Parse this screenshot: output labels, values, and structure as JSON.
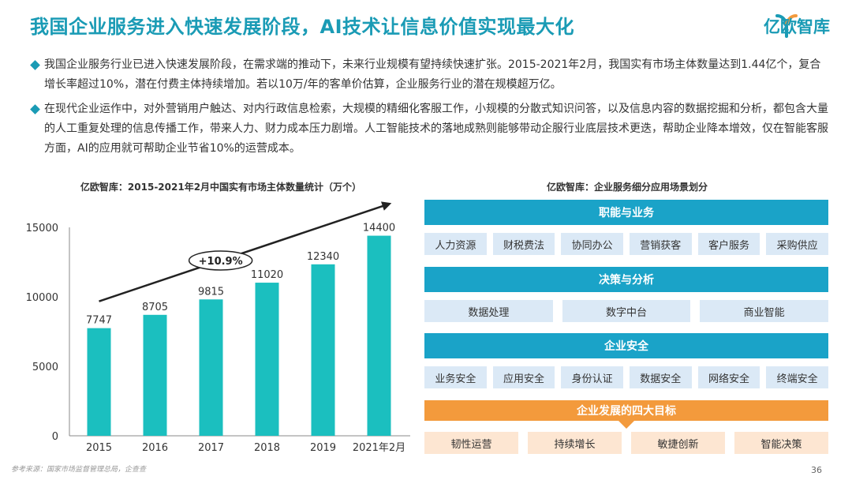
{
  "header": {
    "title": "我国企业服务进入快速发展阶段，AI技术让信息价值实现最大化",
    "logo_text": "亿欧智库"
  },
  "bullets": [
    "我国企业服务行业已进入快速发展阶段，在需求端的推动下，未来行业规模有望持续快速扩张。2015-2021年2月，我国实有市场主体数量达到1.44亿个，复合增长率超过10%，潜在付费主体持续增加。若以10万/年的客单价估算，企业服务行业的潜在规模超万亿。",
    "在现代企业运作中，对外营销用户触达、对内行政信息检索，大规模的精细化客服工作，小规模的分散式知识问答，以及信息内容的数据挖掘和分析，都包含大量的人工重复处理的信息传播工作，带来人力、财力成本压力剧增。人工智能技术的落地成熟则能够带动企服行业底层技术更迭，帮助企业降本增效，仅在智能客服方面，AI的应用就可帮助企业节省10%的运营成本。"
  ],
  "chart_data": {
    "type": "bar",
    "title": "亿欧智库：2015-2021年2月中国实有市场主体数量统计（万个）",
    "categories": [
      "2015",
      "2016",
      "2017",
      "2018",
      "2019",
      "2021年2月"
    ],
    "values": [
      7747,
      8705,
      9815,
      11020,
      12340,
      14400
    ],
    "y_ticks": [
      0,
      5000,
      10000,
      15000
    ],
    "ylim": [
      0,
      15000
    ],
    "annotation": "+10.9%",
    "bar_color": "#1bbfbf",
    "grid": false
  },
  "diagram": {
    "title": "亿欧智库：企业服务细分应用场景划分",
    "sections": [
      {
        "heading": "职能与业务",
        "items": [
          "人力资源",
          "财税费法",
          "协同办公",
          "营销获客",
          "客户服务",
          "采购供应"
        ]
      },
      {
        "heading": "决策与分析",
        "items": [
          "数据处理",
          "数字中台",
          "商业智能"
        ]
      },
      {
        "heading": "企业安全",
        "items": [
          "业务安全",
          "应用安全",
          "身份认证",
          "数据安全",
          "网络安全",
          "终端安全"
        ]
      },
      {
        "heading": "企业发展的四大目标",
        "items": [
          "韧性运营",
          "持续增长",
          "敏捷创新",
          "智能决策"
        ]
      }
    ],
    "colors": {
      "band": "#1aa3c8",
      "cell": "#dbe9f6",
      "goal_band": "#f39a3c",
      "goal_cell": "#fde6d2"
    }
  },
  "footer": {
    "source": "参考来源：国家市场监督管理总局，企查查",
    "page_number": "36"
  }
}
